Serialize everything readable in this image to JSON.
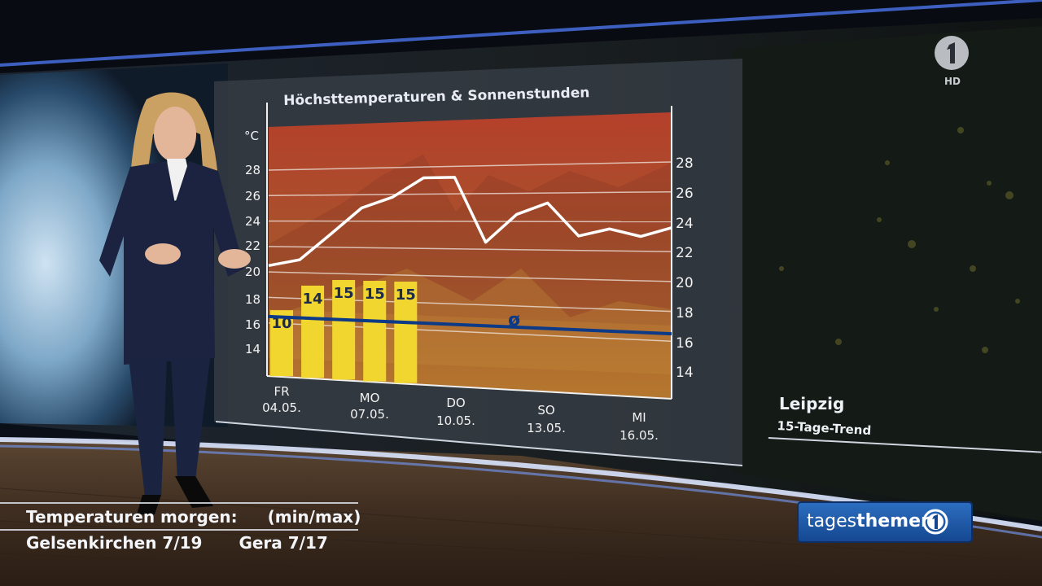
{
  "chart": {
    "title": "Höchsttemperaturen & Sonnenstunden",
    "left_unit": "°C",
    "left_ticks": [
      "28",
      "26",
      "24",
      "22",
      "20",
      "18",
      "16",
      "14"
    ],
    "right_ticks": [
      "28",
      "26",
      "24",
      "22",
      "20",
      "18",
      "16",
      "14"
    ],
    "avg_symbol": "ø",
    "sunshine_bars": [
      "10",
      "14",
      "15",
      "15",
      "15"
    ],
    "x_labels": [
      {
        "day": "FR",
        "date": "04.05."
      },
      {
        "day": "MO",
        "date": "07.05."
      },
      {
        "day": "DO",
        "date": "10.05."
      },
      {
        "day": "SO",
        "date": "13.05."
      },
      {
        "day": "MI",
        "date": "16.05."
      }
    ],
    "colors": {
      "bar": "#f2d630",
      "avg_line": "#0c3a86",
      "temp_line": "#ffffff",
      "panel_top": "#b8432a",
      "panel_bottom": "#b8742e"
    }
  },
  "chart_data": {
    "type": "line",
    "title": "Höchsttemperaturen & Sonnenstunden",
    "ylabel": "°C",
    "ylim": [
      13,
      30
    ],
    "x_day_index": [
      0,
      1,
      2,
      3,
      4,
      5,
      6,
      7,
      8,
      9,
      10,
      11,
      12,
      13
    ],
    "series": [
      {
        "values": [
          20.5,
          21.0,
          23.0,
          25.0,
          25.8,
          27.2,
          27.2,
          22.5,
          24.5,
          25.3,
          23.0,
          23.5,
          23.0,
          23.6
        ]
      }
    ],
    "bars": {
      "values": [
        10,
        14,
        15,
        15,
        15
      ]
    },
    "average": {
      "label": "ø",
      "value": 16.5
    }
  },
  "location": {
    "city": "Leipzig",
    "subtitle": "15-Tage-Trend"
  },
  "channel": {
    "hd": "HD"
  },
  "ticker": {
    "heading": "Temperaturen morgen:",
    "heading_unit": "(min/max)",
    "city1": "Gelsenkirchen 7/19",
    "city2": "Gera 7/17"
  },
  "show": {
    "brand_part1": "tages",
    "brand_part2": "themen"
  }
}
